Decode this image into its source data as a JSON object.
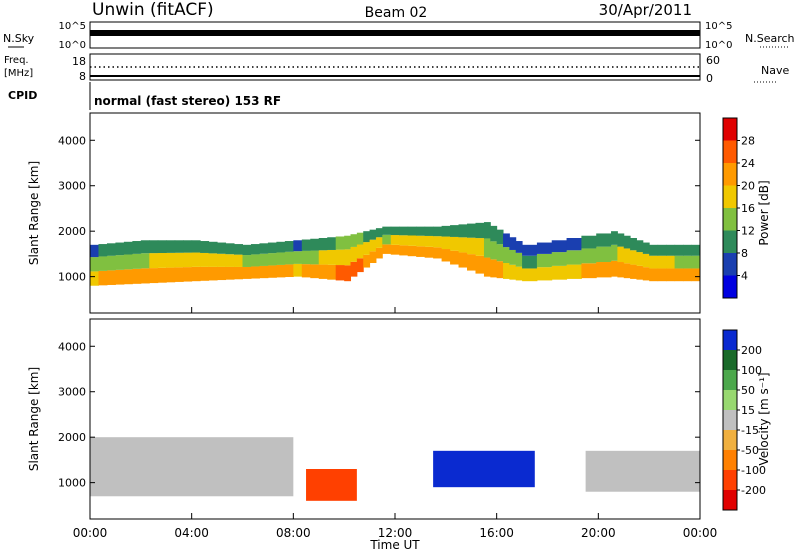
{
  "header": {
    "station": "Unwin (fitACF)",
    "beam": "Beam 02",
    "date": "30/Apr/2011"
  },
  "noise_panel": {
    "left_label": "N.Sky",
    "right_label": "N.Search",
    "left_ticks": [
      "10^5",
      "10^0"
    ],
    "right_ticks": [
      "10^5",
      "10^0"
    ]
  },
  "freq_panel": {
    "left_label_1": "Freq.",
    "left_label_2": "[MHz]",
    "left_ticks": [
      "18",
      "8"
    ],
    "right_label": "Nave",
    "right_ticks": [
      "60",
      "0"
    ]
  },
  "cpid_panel": {
    "label": "CPID",
    "text": "normal (fast stereo) 153 RF"
  },
  "power_panel": {
    "ylabel": "Slant Range [km]",
    "colorbar_label": "Power [dB]",
    "colorbar_ticks": [
      "28",
      "24",
      "20",
      "16",
      "12",
      "8",
      "4"
    ],
    "colorbar_colors": [
      "#e00000",
      "#ff5a00",
      "#ff9a00",
      "#f0c800",
      "#80c040",
      "#2e8a5a",
      "#1a3fb0",
      "#0000e0"
    ]
  },
  "velocity_panel": {
    "ylabel": "Slant Range [km]",
    "colorbar_label": "Velocity [m s⁻¹]",
    "colorbar_ticks": [
      "200",
      "100",
      "50",
      "15",
      "-15",
      "-50",
      "-100",
      "-200"
    ],
    "colorbar_colors": [
      "#0a2ad0",
      "#1a6a2a",
      "#4ca84c",
      "#98d870",
      "#c0c0c0",
      "#f0b040",
      "#ff8000",
      "#ff4000",
      "#e00000"
    ]
  },
  "x_axis": {
    "label": "Time UT",
    "ticks": [
      "00:00",
      "04:00",
      "08:00",
      "12:00",
      "16:00",
      "20:00",
      "00:00"
    ]
  },
  "chart_data": {
    "type": "heatmap",
    "title": "Unwin (fitACF) Beam 02 30/Apr/2011",
    "xlabel": "Time UT",
    "ylabel": "Slant Range [km]",
    "x_hours_range": [
      0,
      24
    ],
    "ylim": [
      200,
      4600
    ],
    "yticks": [
      1000,
      2000,
      3000,
      4000
    ],
    "power_range_dB": [
      0,
      32
    ],
    "velocity_range": [
      -250,
      250
    ],
    "power_band": [
      {
        "t": 0.0,
        "low": 800,
        "high": 1700,
        "db": 20
      },
      {
        "t": 2.0,
        "low": 850,
        "high": 1800,
        "db": 22
      },
      {
        "t": 4.0,
        "low": 900,
        "high": 1800,
        "db": 24
      },
      {
        "t": 6.0,
        "low": 950,
        "high": 1700,
        "db": 22
      },
      {
        "t": 8.0,
        "low": 1000,
        "high": 1800,
        "db": 20
      },
      {
        "t": 10.0,
        "low": 900,
        "high": 1900,
        "db": 26
      },
      {
        "t": 11.5,
        "low": 1500,
        "high": 2100,
        "db": 22
      },
      {
        "t": 13.5,
        "low": 1400,
        "high": 2100,
        "db": 24
      },
      {
        "t": 15.5,
        "low": 1000,
        "high": 2200,
        "db": 22
      },
      {
        "t": 17.0,
        "low": 900,
        "high": 1700,
        "db": 18
      },
      {
        "t": 20.5,
        "low": 1000,
        "high": 2000,
        "db": 22
      },
      {
        "t": 22.0,
        "low": 900,
        "high": 1700,
        "db": 24
      },
      {
        "t": 24.0,
        "low": 900,
        "high": 1700,
        "db": 20
      }
    ],
    "velocity_regions": [
      {
        "t0": 0.0,
        "t1": 8.0,
        "low": 700,
        "high": 2000,
        "v": 0
      },
      {
        "t0": 8.5,
        "t1": 10.5,
        "low": 600,
        "high": 1300,
        "v": -200
      },
      {
        "t0": 13.5,
        "t1": 17.5,
        "low": 900,
        "high": 1700,
        "v": 200
      },
      {
        "t0": 19.5,
        "t1": 24.0,
        "low": 800,
        "high": 1700,
        "v": 0
      }
    ]
  }
}
